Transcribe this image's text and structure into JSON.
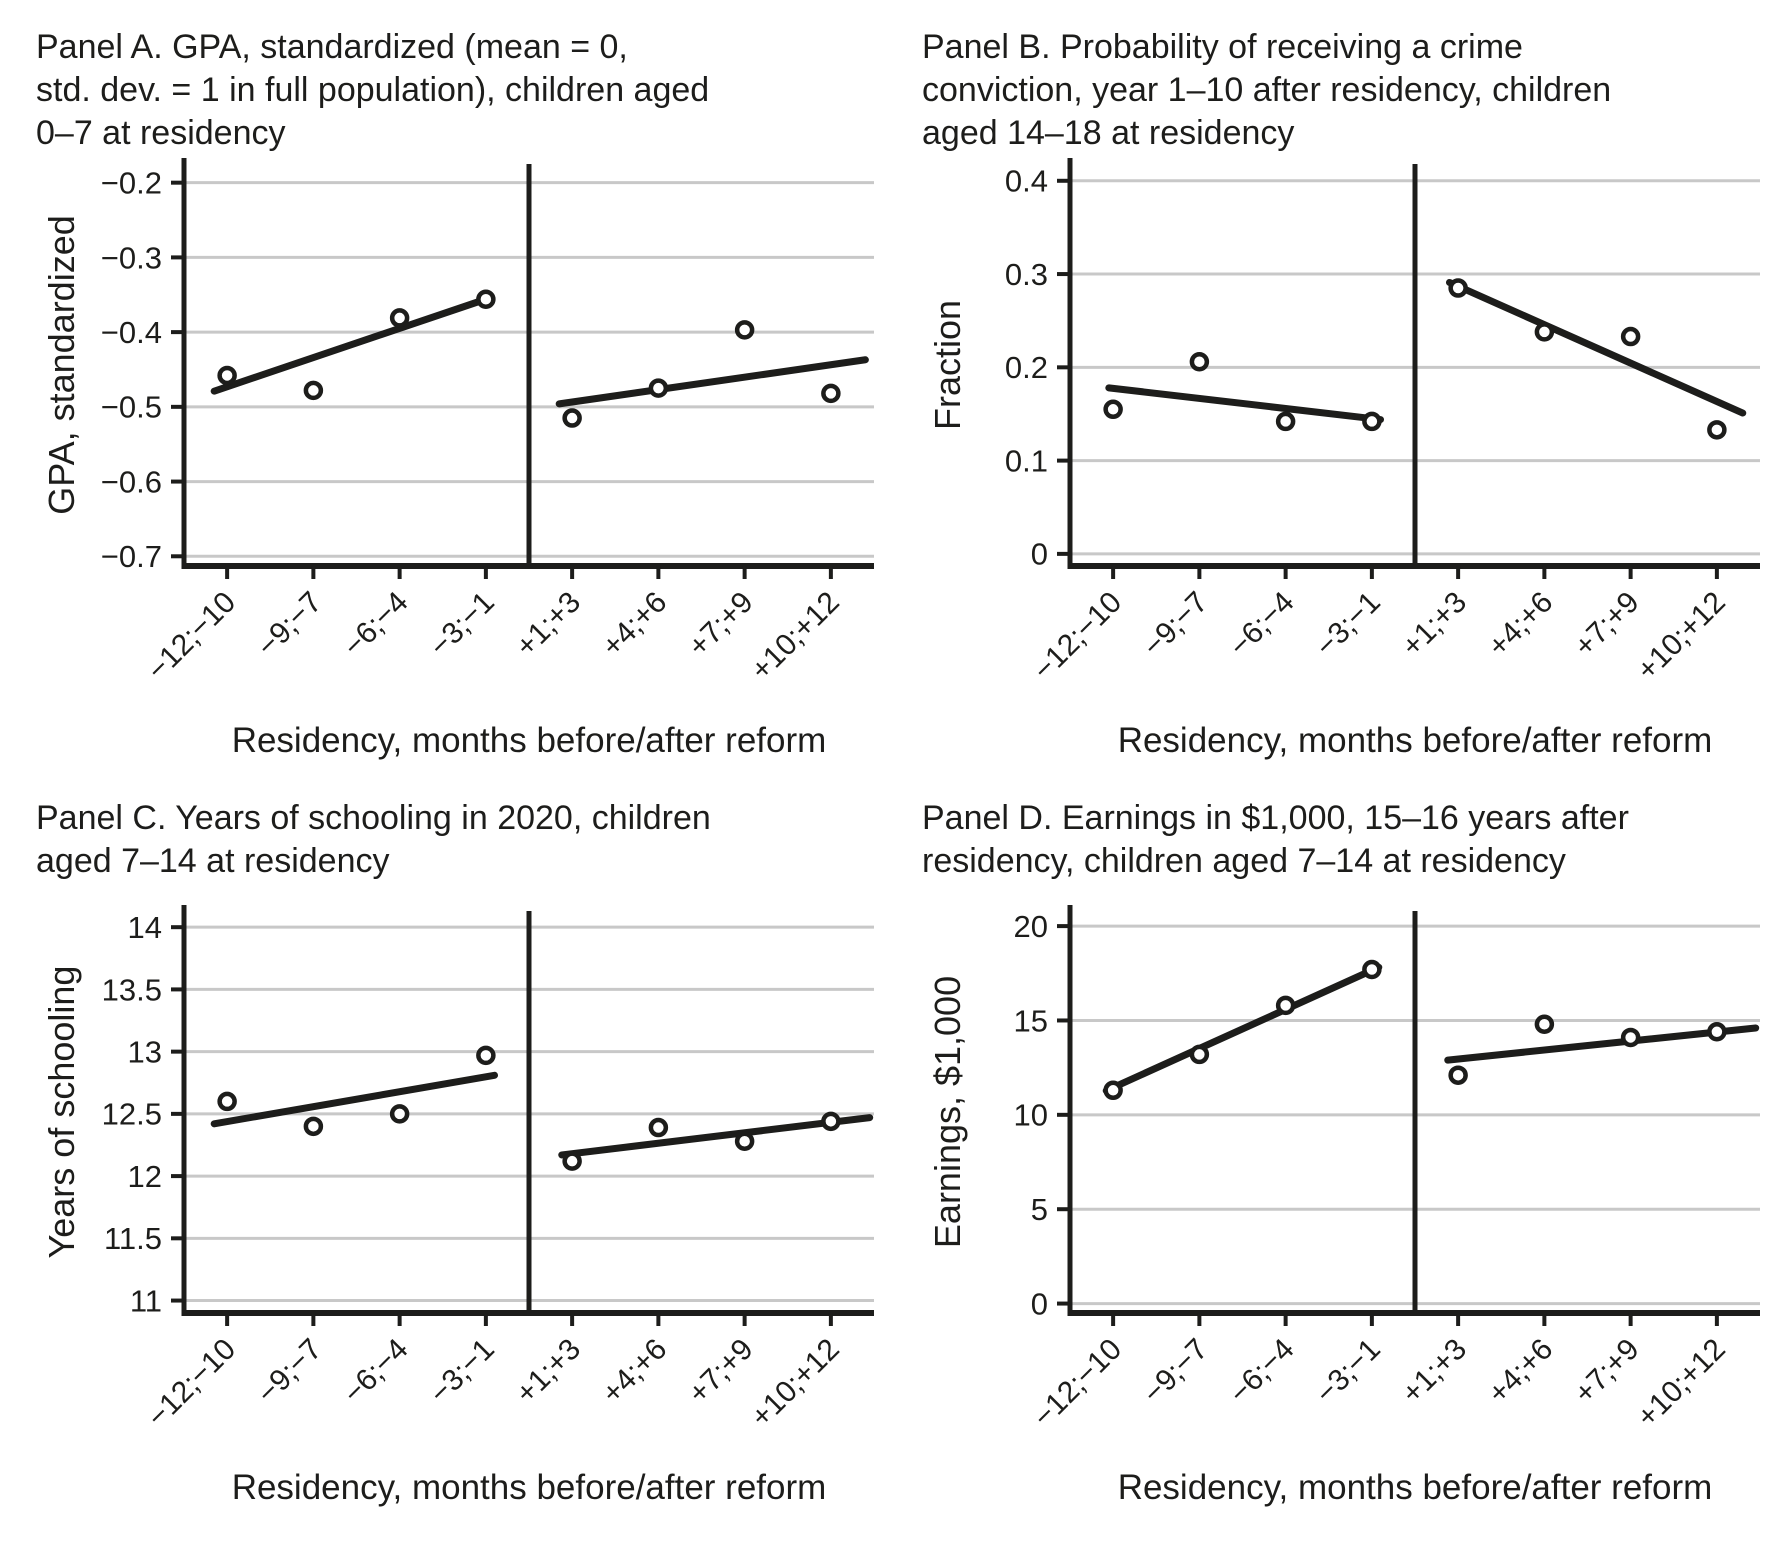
{
  "style": {
    "ink": "#1d1d1b",
    "grid": "#c8c8c8",
    "marker_fill": "#ffffff",
    "background": "#ffffff"
  },
  "chart_data": [
    {
      "type": "scatter",
      "panel_id": "A",
      "title_lines": [
        "Panel A. GPA, standardized (mean = 0,",
        "std. dev. = 1 in full population), children aged",
        "0–7 at residency"
      ],
      "ylabel": "GPA, standardized",
      "xlabel": "Residency, months before/after reform",
      "categories": [
        "−12;−10",
        "−9;−7",
        "−6;−4",
        "−3;−1",
        "+1;+3",
        "+4;+6",
        "+7;+9",
        "+10;+12"
      ],
      "points": [
        -0.458,
        -0.478,
        -0.381,
        -0.356,
        -0.515,
        -0.475,
        -0.397,
        -0.482
      ],
      "yticks": [
        -0.2,
        -0.3,
        -0.4,
        -0.5,
        -0.6,
        -0.7
      ],
      "ytick_labels": [
        "−0.2",
        "−0.3",
        "−0.4",
        "−0.5",
        "−0.6",
        "−0.7"
      ],
      "ylim": [
        -0.713,
        -0.175
      ],
      "grid": "horizontal",
      "cutoff_position": "between categories 4 and 5",
      "fit_segments": [
        {
          "x1": -0.15,
          "y1": -0.479,
          "x2": 3.05,
          "y2": -0.354
        },
        {
          "x1": 3.85,
          "y1": -0.496,
          "x2": 7.4,
          "y2": -0.437
        }
      ]
    },
    {
      "type": "scatter",
      "panel_id": "B",
      "title_lines": [
        "Panel B. Probability of receiving a crime",
        "conviction, year 1–10 after residency, children",
        "aged 14–18 at residency"
      ],
      "ylabel": "Fraction",
      "xlabel": "Residency, months before/after reform",
      "categories": [
        "−12;−10",
        "−9;−7",
        "−6;−4",
        "−3;−1",
        "+1;+3",
        "+4;+6",
        "+7;+9",
        "+10;+12"
      ],
      "points": [
        0.155,
        0.206,
        0.142,
        0.142,
        0.285,
        0.238,
        0.233,
        0.133
      ],
      "yticks": [
        0,
        0.1,
        0.2,
        0.3,
        0.4
      ],
      "ytick_labels": [
        "0",
        "0.1",
        "0.2",
        "0.3",
        "0.4"
      ],
      "ylim": [
        -0.013,
        0.418
      ],
      "grid": "horizontal",
      "cutoff_position": "between categories 4 and 5",
      "fit_segments": [
        {
          "x1": -0.05,
          "y1": 0.178,
          "x2": 3.1,
          "y2": 0.144
        },
        {
          "x1": 3.9,
          "y1": 0.291,
          "x2": 7.3,
          "y2": 0.151
        }
      ]
    },
    {
      "type": "scatter",
      "panel_id": "C",
      "title_lines": [
        "Panel C. Years of schooling in 2020, children",
        "aged 7–14 at residency"
      ],
      "ylabel": "Years of schooling",
      "xlabel": "Residency, months before/after reform",
      "categories": [
        "−12;−10",
        "−9;−7",
        "−6;−4",
        "−3;−1",
        "+1;+3",
        "+4;+6",
        "+7;+9",
        "+10;+12"
      ],
      "points": [
        12.6,
        12.4,
        12.5,
        12.97,
        12.12,
        12.39,
        12.28,
        12.44
      ],
      "yticks": [
        11,
        11.5,
        12,
        12.5,
        13,
        13.5,
        14
      ],
      "ytick_labels": [
        "11",
        "11.5",
        "12",
        "12.5",
        "13",
        "13.5",
        "14"
      ],
      "ylim": [
        10.9,
        14.13
      ],
      "grid": "horizontal",
      "cutoff_position": "between categories 4 and 5",
      "fit_segments": [
        {
          "x1": -0.15,
          "y1": 12.42,
          "x2": 3.1,
          "y2": 12.81
        },
        {
          "x1": 3.88,
          "y1": 12.17,
          "x2": 7.45,
          "y2": 12.47
        }
      ]
    },
    {
      "type": "scatter",
      "panel_id": "D",
      "title_lines": [
        "Panel D. Earnings in $1,000, 15–16 years after",
        "residency, children aged 7–14 at residency"
      ],
      "ylabel": "Earnings, $1,000",
      "xlabel": "Residency, months before/after reform",
      "categories": [
        "−12;−10",
        "−9;−7",
        "−6;−4",
        "−3;−1",
        "+1;+3",
        "+4;+6",
        "+7;+9",
        "+10;+12"
      ],
      "points": [
        11.3,
        13.2,
        15.8,
        17.7,
        12.1,
        14.8,
        14.1,
        14.4
      ],
      "yticks": [
        0,
        5,
        10,
        15,
        20
      ],
      "ytick_labels": [
        "0",
        "5",
        "10",
        "15",
        "20"
      ],
      "ylim": [
        -0.5,
        20.8
      ],
      "grid": "horizontal",
      "cutoff_position": "between categories 4 and 5",
      "fit_segments": [
        {
          "x1": -0.08,
          "y1": 11.28,
          "x2": 3.08,
          "y2": 17.82
        },
        {
          "x1": 3.88,
          "y1": 12.9,
          "x2": 7.45,
          "y2": 14.6
        }
      ]
    }
  ]
}
